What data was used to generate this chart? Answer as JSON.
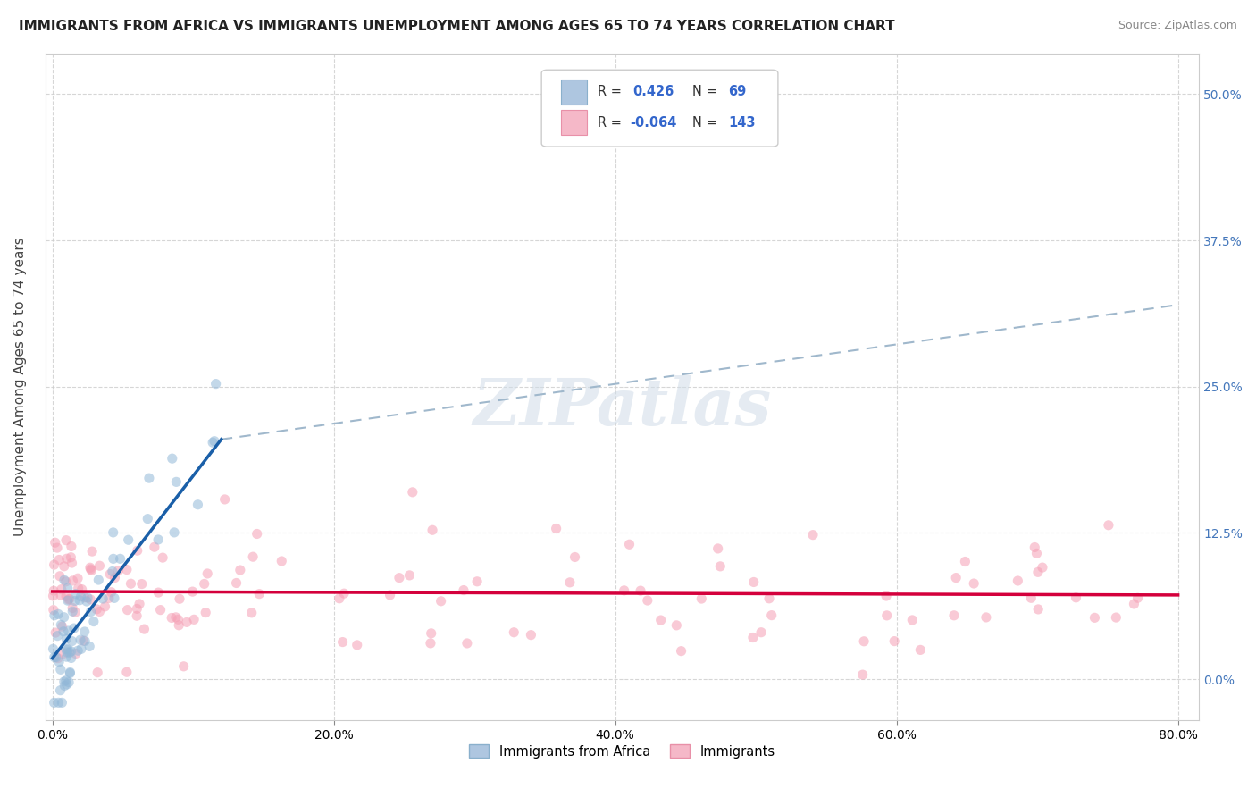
{
  "title": "IMMIGRANTS FROM AFRICA VS IMMIGRANTS UNEMPLOYMENT AMONG AGES 65 TO 74 YEARS CORRELATION CHART",
  "source": "Source: ZipAtlas.com",
  "ylabel": "Unemployment Among Ages 65 to 74 years",
  "legend_labels": [
    "Immigrants from Africa",
    "Immigrants"
  ],
  "r_values": [
    0.426,
    -0.064
  ],
  "n_values": [
    69,
    143
  ],
  "xlim": [
    -0.005,
    0.815
  ],
  "ylim": [
    -0.035,
    0.535
  ],
  "yticks": [
    0.0,
    0.125,
    0.25,
    0.375,
    0.5
  ],
  "xticks": [
    0.0,
    0.2,
    0.4,
    0.6,
    0.8
  ],
  "blue_color": "#92b8d8",
  "pink_color": "#f5a0b5",
  "blue_line_color": "#1a5fa8",
  "pink_line_color": "#d4003c",
  "dashed_line_color": "#a0b8cc",
  "background_color": "#ffffff",
  "grid_color": "#cccccc",
  "title_fontsize": 11,
  "axis_label_fontsize": 11,
  "tick_fontsize": 10,
  "blue_line_x0": 0.0,
  "blue_line_y0": 0.018,
  "blue_line_x1": 0.12,
  "blue_line_y1": 0.205,
  "dash_line_x0": 0.12,
  "dash_line_y0": 0.205,
  "dash_line_x1": 0.8,
  "dash_line_y1": 0.32,
  "pink_line_x0": 0.0,
  "pink_line_y0": 0.075,
  "pink_line_x1": 0.8,
  "pink_line_y1": 0.072
}
